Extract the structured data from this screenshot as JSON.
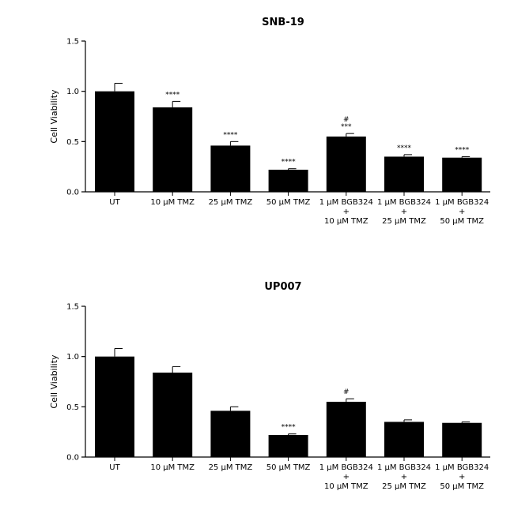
{
  "chart_data": [
    {
      "type": "bar",
      "title": "SNB-19",
      "ylabel": "Cell Viability",
      "xlabel": "",
      "ylim": [
        0,
        1.5
      ],
      "yticks": [
        "0.0",
        "0.5",
        "1.0",
        "1.5"
      ],
      "categories": [
        [
          "UT"
        ],
        [
          "10 µM TMZ"
        ],
        [
          "25 µM TMZ"
        ],
        [
          "50 µM TMZ"
        ],
        [
          "1 µM BGB324",
          "+",
          "10 µM TMZ"
        ],
        [
          "1 µM BGB324",
          "+",
          "25 µM TMZ"
        ],
        [
          "1 µM BGB324",
          "+",
          "50 µM TMZ"
        ]
      ],
      "values": [
        1.0,
        0.84,
        0.46,
        0.22,
        0.55,
        0.35,
        0.34
      ],
      "errors": [
        0.08,
        0.06,
        0.04,
        0.01,
        0.03,
        0.02,
        0.01
      ],
      "annotations": [
        [],
        [
          "****"
        ],
        [
          "****"
        ],
        [
          "****"
        ],
        [
          "#",
          "***"
        ],
        [
          "****"
        ],
        [
          "****"
        ]
      ],
      "grid": false,
      "bar_color": "#000000"
    },
    {
      "type": "bar",
      "title": "UP007",
      "ylabel": "Cell Viability",
      "xlabel": "",
      "ylim": [
        0,
        1.5
      ],
      "yticks": [
        "0.0",
        "0.5",
        "1.0",
        "1.5"
      ],
      "categories": [
        [
          "UT"
        ],
        [
          "10 µM TMZ"
        ],
        [
          "25 µM TMZ"
        ],
        [
          "50 µM TMZ"
        ],
        [
          "1 µM BGB324",
          "+",
          "10 µM TMZ"
        ],
        [
          "1 µM BGB324",
          "+",
          "25 µM TMZ"
        ],
        [
          "1 µM BGB324",
          "+",
          "50 µM TMZ"
        ]
      ],
      "values": [
        1.0,
        0.84,
        0.46,
        0.22,
        0.55,
        0.35,
        0.34
      ],
      "errors": [
        0.08,
        0.06,
        0.04,
        0.01,
        0.03,
        0.02,
        0.01
      ],
      "annotations": [
        [],
        [],
        [],
        [
          "****"
        ],
        [
          "#"
        ],
        [],
        []
      ],
      "grid": false,
      "bar_color": "#000000"
    }
  ]
}
